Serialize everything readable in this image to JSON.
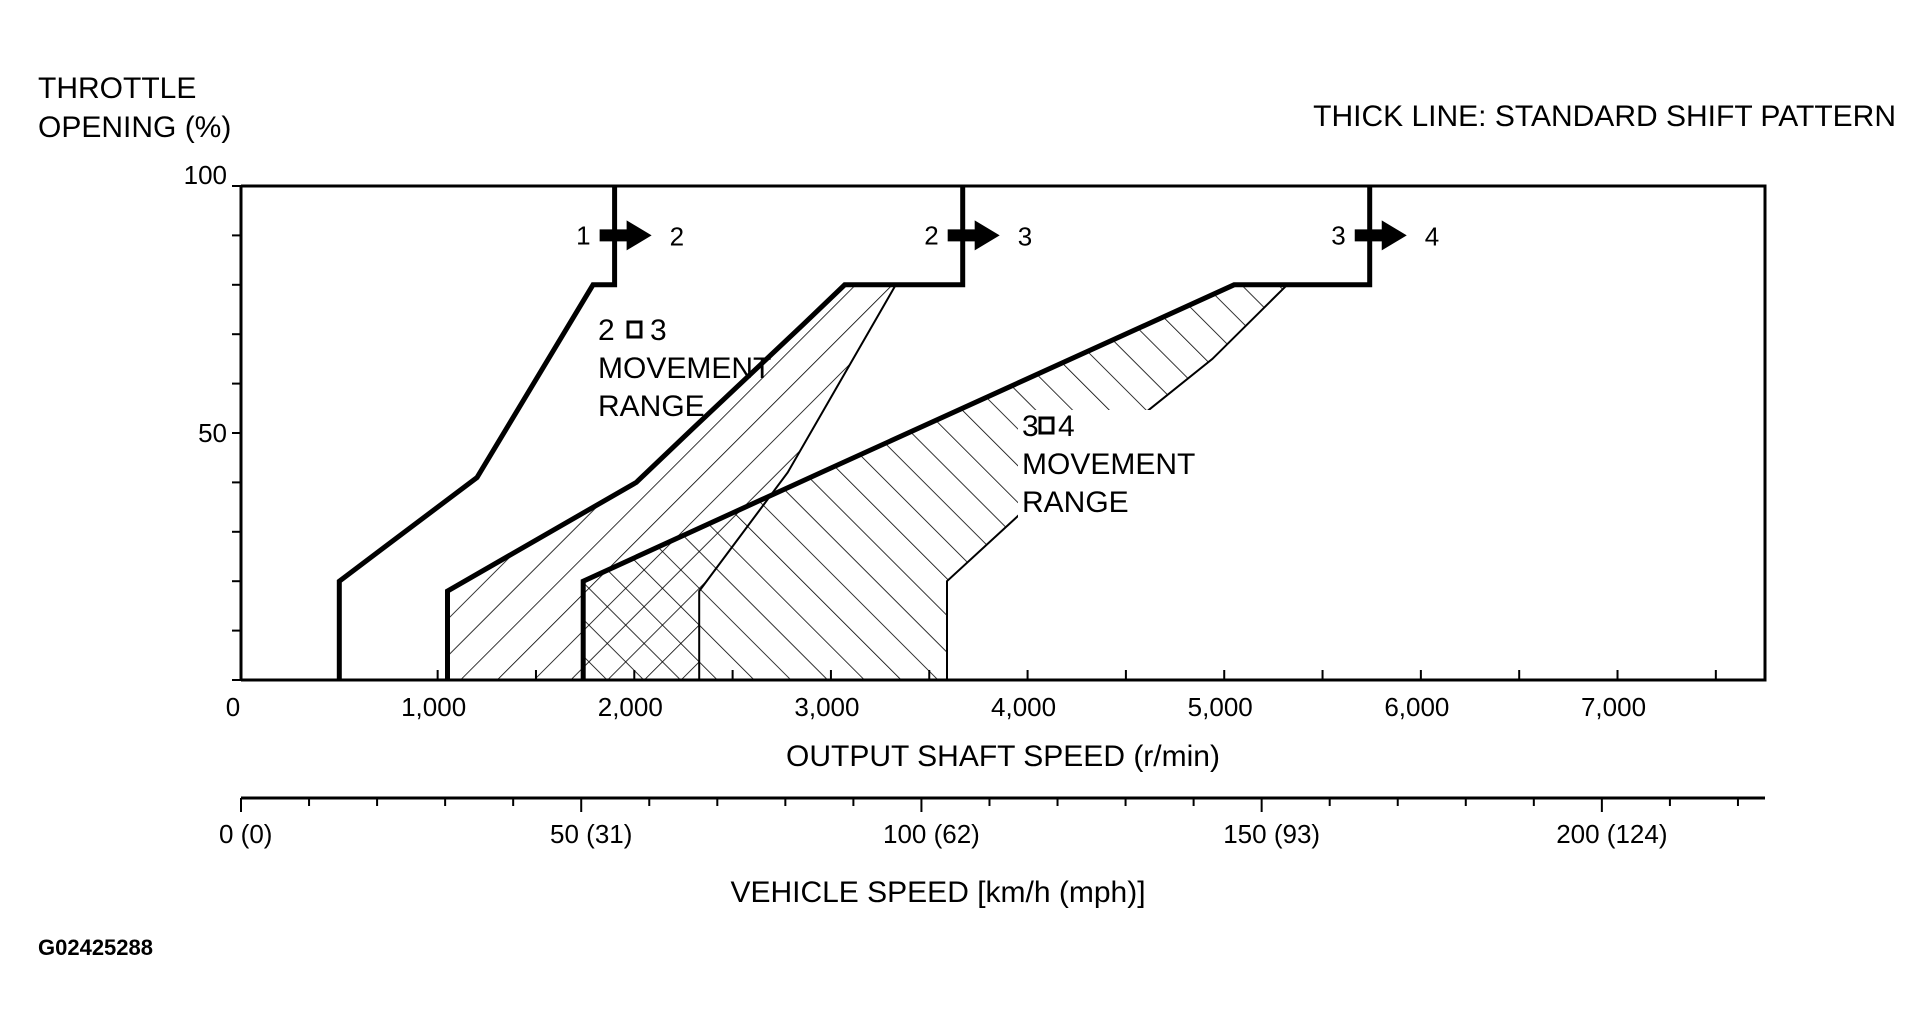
{
  "chart_data": {
    "type": "line",
    "title": "",
    "ylabel_line1": "THROTTLE",
    "ylabel_line2": "OPENING (%)",
    "xlabel": "OUTPUT SHAFT SPEED (r/min)",
    "x2label": "VEHICLE SPEED [km/h (mph)]",
    "legend_note": "THICK LINE: STANDARD SHIFT PATTERN",
    "figure_code": "G02425288",
    "xlim": [
      0,
      7750
    ],
    "ylim": [
      0,
      100
    ],
    "x_ticks": [
      {
        "value": 0,
        "label": "0"
      },
      {
        "value": 1000,
        "label": "1,000"
      },
      {
        "value": 2000,
        "label": "2,000"
      },
      {
        "value": 3000,
        "label": "3,000"
      },
      {
        "value": 4000,
        "label": "4,000"
      },
      {
        "value": 5000,
        "label": "5,000"
      },
      {
        "value": 6000,
        "label": "6,000"
      },
      {
        "value": 7000,
        "label": "7,000"
      }
    ],
    "y_ticks": [
      {
        "value": 0,
        "label": ""
      },
      {
        "value": 50,
        "label": "50"
      },
      {
        "value": 100,
        "label": "100"
      }
    ],
    "vehicle_speed_axis": {
      "km_per_rpm": 0.0289,
      "ticks": [
        {
          "value": 0,
          "label": "0 (0)"
        },
        {
          "value": 50,
          "label": "50 (31)"
        },
        {
          "value": 100,
          "label": "100 (62)"
        },
        {
          "value": 150,
          "label": "150 (93)"
        },
        {
          "value": 200,
          "label": "200 (124)"
        }
      ]
    },
    "series": [
      {
        "name": "1 → 2",
        "from": "1",
        "to": "2",
        "style": "thick",
        "points": [
          [
            500,
            0
          ],
          [
            500,
            20
          ],
          [
            1200,
            41
          ],
          [
            1790,
            80
          ],
          [
            1900,
            80
          ],
          [
            1900,
            100
          ]
        ]
      },
      {
        "name": "2 → 3",
        "from": "2",
        "to": "3",
        "style": "thick",
        "points": [
          [
            1050,
            0
          ],
          [
            1050,
            18
          ],
          [
            2010,
            40
          ],
          [
            2300,
            51
          ],
          [
            2860,
            72
          ],
          [
            3070,
            80
          ],
          [
            3670,
            80
          ],
          [
            3670,
            100
          ]
        ]
      },
      {
        "name": "3 → 4",
        "from": "3",
        "to": "4",
        "style": "thick",
        "points": [
          [
            1740,
            0
          ],
          [
            1740,
            20
          ],
          [
            2950,
            42
          ],
          [
            5050,
            80
          ],
          [
            5740,
            80
          ],
          [
            5740,
            100
          ]
        ]
      },
      {
        "name": "",
        "style": "thin",
        "points": [
          [
            2330,
            0
          ],
          [
            2330,
            18
          ],
          [
            2780,
            42
          ],
          [
            3330,
            80
          ],
          [
            3670,
            80
          ]
        ]
      },
      {
        "name": "",
        "style": "thin",
        "points": [
          [
            3590,
            0
          ],
          [
            3590,
            20
          ],
          [
            4000,
            35
          ],
          [
            4940,
            65
          ],
          [
            5320,
            80
          ]
        ]
      }
    ],
    "regions": [
      {
        "label_line1": "2",
        "label_sep": "□",
        "label_line1b": "3",
        "label_line2": "MOVEMENT",
        "label_line3": "RANGE",
        "hatch": "backslash"
      },
      {
        "label_line1": "3",
        "label_sep": "□",
        "label_line1b": "4",
        "label_line2": "MOVEMENT",
        "label_line3": "RANGE",
        "hatch": "slash"
      }
    ]
  }
}
